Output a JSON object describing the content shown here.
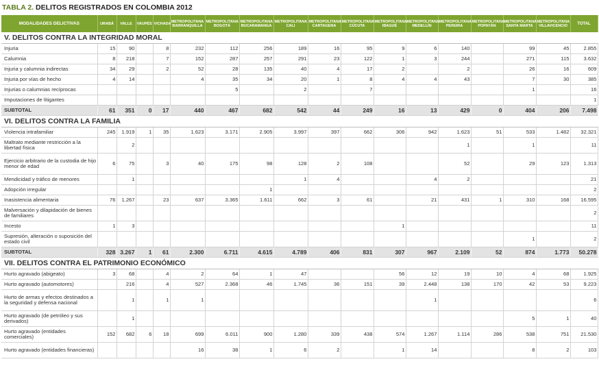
{
  "title": {
    "num": "TABLA 2.",
    "text": "DELITOS REGISTRADOS EN COLOMBIA 2012"
  },
  "headers": [
    "MODALIDADES DELICTIVAS",
    "URABÁ",
    "VALLE",
    "VAUPÉS",
    "VICHADA",
    "METROPOLITANA BARRANQUILLA",
    "METROPOLITANA BOGOTÁ",
    "METROPOLITANA BUCARAMANGA",
    "METROPOLITANA CALI",
    "METROPOLITANA CARTAGENA",
    "METROPOLITANA CÚCUTA",
    "METROPOLITANA IBAGUÉ",
    "METROPOLITANA MEDELLÍN",
    "METROPOLITANA PEREIRA",
    "METROPOLITANA POPAYÁN",
    "METROPOLITANA SANTA MARTA",
    "METROPOLITANA VILLAVICENCIO",
    "TOTAL"
  ],
  "rows": [
    {
      "t": "section",
      "label": "V. DELITOS CONTRA  LA INTEGRIDAD MORAL"
    },
    {
      "t": "row",
      "label": "Injuria",
      "v": [
        "15",
        "90",
        "",
        "8",
        "232",
        "112",
        "256",
        "189",
        "16",
        "95",
        "9",
        "6",
        "140",
        "",
        "99",
        "45",
        "2.855"
      ]
    },
    {
      "t": "row",
      "label": "Calumnia",
      "v": [
        "8",
        "218",
        "",
        "7",
        "152",
        "287",
        "257",
        "291",
        "23",
        "122",
        "1",
        "3",
        "244",
        "",
        "271",
        "115",
        "3.632"
      ]
    },
    {
      "t": "row",
      "label": "Injuria y calumnia indirectas",
      "v": [
        "34",
        "29",
        "",
        "2",
        "52",
        "28",
        "135",
        "40",
        "4",
        "17",
        "2",
        "",
        "2",
        "",
        "26",
        "16",
        "609"
      ]
    },
    {
      "t": "row",
      "label": "Injuria por vías de hecho",
      "v": [
        "4",
        "14",
        "",
        "",
        "4",
        "35",
        "34",
        "20",
        "1",
        "8",
        "4",
        "4",
        "43",
        "",
        "7",
        "30",
        "385"
      ]
    },
    {
      "t": "row",
      "label": "Injurias o calumnias recíprocas",
      "v": [
        "",
        "",
        "",
        "",
        "",
        "5",
        "",
        "2",
        "",
        "7",
        "",
        "",
        "",
        "",
        "1",
        "",
        "16"
      ]
    },
    {
      "t": "row",
      "label": "Imputaciones de litigantes",
      "v": [
        "",
        "",
        "",
        "",
        "",
        "",
        "",
        "",
        "",
        "",
        "",
        "",
        "",
        "",
        "",
        "",
        "1"
      ]
    },
    {
      "t": "subtotal",
      "label": "SUBTOTAL",
      "v": [
        "61",
        "351",
        "0",
        "17",
        "440",
        "467",
        "682",
        "542",
        "44",
        "249",
        "16",
        "13",
        "429",
        "0",
        "404",
        "206",
        "7.498"
      ]
    },
    {
      "t": "section",
      "label": "VI. DELITOS CONTRA LA FAMILIA"
    },
    {
      "t": "row",
      "label": "Violencia intrafamiliar",
      "v": [
        "245",
        "1.919",
        "1",
        "35",
        "1.623",
        "3.171",
        "2.905",
        "3.997",
        "397",
        "662",
        "306",
        "942",
        "1.623",
        "51",
        "533",
        "1.482",
        "32.321"
      ]
    },
    {
      "t": "row2",
      "label": "Maltrato mediante restricción a la libertad física",
      "v": [
        "",
        "2",
        "",
        "",
        "",
        "",
        "",
        "",
        "",
        "",
        "",
        "",
        "1",
        "",
        "1",
        "",
        "11"
      ]
    },
    {
      "t": "row3",
      "label": "Ejercicio arbitrario de la custodia de hijo menor de edad",
      "v": [
        "6",
        "75",
        "",
        "3",
        "40",
        "175",
        "98",
        "128",
        "2",
        "108",
        "",
        "",
        "52",
        "",
        "29",
        "123",
        "1.313"
      ]
    },
    {
      "t": "row",
      "label": "Mendicidad y tráfico de menores",
      "v": [
        "",
        "1",
        "",
        "",
        "",
        "",
        "",
        "1",
        "4",
        "",
        "",
        "4",
        "2",
        "",
        "",
        "",
        "21"
      ]
    },
    {
      "t": "row",
      "label": "Adopción irregular",
      "v": [
        "",
        "",
        "",
        "",
        "",
        "",
        "1",
        "",
        "",
        "",
        "",
        "",
        "",
        "",
        "",
        "",
        "2"
      ]
    },
    {
      "t": "row",
      "label": "Inasistencia alimentaria",
      "v": [
        "76",
        "1.267",
        "",
        "23",
        "637",
        "3.365",
        "1.611",
        "662",
        "3",
        "61",
        "",
        "21",
        "431",
        "1",
        "310",
        "168",
        "16.595"
      ]
    },
    {
      "t": "row2",
      "label": "Malversación y dilapidación de bienes de familiares",
      "v": [
        "",
        "",
        "",
        "",
        "",
        "",
        "",
        "",
        "",
        "",
        "",
        "",
        "",
        "",
        "",
        "",
        "2"
      ]
    },
    {
      "t": "row",
      "label": "Incesto",
      "v": [
        "1",
        "3",
        "",
        "",
        "",
        "",
        "",
        "",
        "",
        "",
        "1",
        "",
        "",
        "",
        "",
        "",
        "11"
      ]
    },
    {
      "t": "row2",
      "label": "Supresión, alteración o suposición del estado civil",
      "v": [
        "",
        "",
        "",
        "",
        "",
        "",
        "",
        "",
        "",
        "",
        "",
        "",
        "",
        "",
        "1",
        "",
        "2"
      ]
    },
    {
      "t": "subtotal",
      "label": "SUBTOTAL",
      "v": [
        "328",
        "3.267",
        "1",
        "61",
        "2.300",
        "6.711",
        "4.615",
        "4.789",
        "406",
        "831",
        "307",
        "967",
        "2.109",
        "52",
        "874",
        "1.773",
        "50.278"
      ]
    },
    {
      "t": "section",
      "label": "VII. DELITOS CONTRA EL PATRIMONIO ECONÓMICO"
    },
    {
      "t": "row",
      "label": "Hurto agravado (abigeato)",
      "v": [
        "3",
        "68",
        "",
        "4",
        "2",
        "64",
        "1",
        "47",
        "",
        "",
        "56",
        "12",
        "19",
        "10",
        "4",
        "68",
        "1.925"
      ]
    },
    {
      "t": "row",
      "label": "Hurto agravado (automotores)",
      "v": [
        "",
        "216",
        "",
        "4",
        "527",
        "2.368",
        "46",
        "1.745",
        "36",
        "151",
        "39",
        "2.448",
        "138",
        "170",
        "42",
        "53",
        "9.223"
      ]
    },
    {
      "t": "row3",
      "label": "Hurto de armas y efectos destinados a la seguridad y defensa nacional",
      "v": [
        "",
        "1",
        "",
        "1",
        "1",
        "",
        "",
        "",
        "",
        "",
        "",
        "1",
        "",
        "",
        "",
        "",
        "6"
      ]
    },
    {
      "t": "row2",
      "label": "Hurto agravado (de petróleo y sus derivados)",
      "v": [
        "",
        "1",
        "",
        "",
        "",
        "",
        "",
        "",
        "",
        "",
        "",
        "",
        "",
        "",
        "5",
        "1",
        "40"
      ]
    },
    {
      "t": "row2",
      "label": "Hurto agravado (entidades comerciales)",
      "v": [
        "152",
        "682",
        "6",
        "18",
        "699",
        "6.011",
        "900",
        "1.280",
        "339",
        "438",
        "574",
        "1.267",
        "1.114",
        "286",
        "538",
        "751",
        "21.530"
      ]
    },
    {
      "t": "row2",
      "label": "Hurto agravado (entidades financieras)",
      "v": [
        "",
        "",
        "",
        "",
        "16",
        "38",
        "1",
        "6",
        "2",
        "",
        "1",
        "14",
        "",
        "",
        "8",
        "2",
        "103"
      ]
    }
  ]
}
